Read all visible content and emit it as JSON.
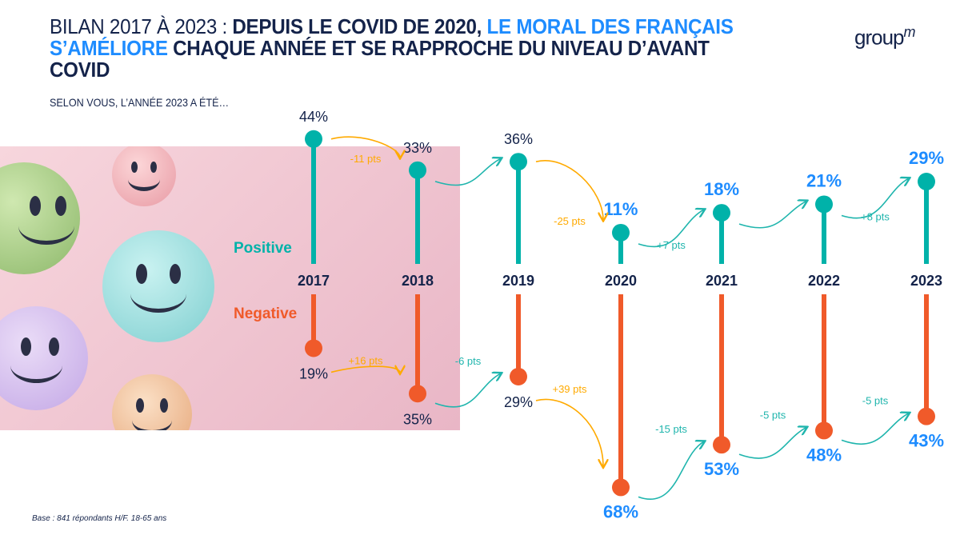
{
  "header": {
    "title_part1": "BILAN 2017 À 2023 : ",
    "title_part2": "DEPUIS LE COVID DE 2020, ",
    "title_part3": "LE MORAL DES FRANÇAIS S’AMÉLIORE",
    "title_part4": " CHAQUE ANNÉE ET SE RAPPROCHE DU NIVEAU D’AVANT COVID",
    "logo": "group",
    "logo_sup": "m",
    "subtitle": "SELON VOUS, L’ANNÉE 2023 A ÉTÉ…"
  },
  "footnote": "Base : 841 répondants H/F. 18-65 ans",
  "colors": {
    "positive": "#00b2a9",
    "negative": "#f05a2a",
    "navy": "#14234a",
    "highlight": "#1e8cff",
    "worse": "#ffaa00",
    "better": "#1fb5ad"
  },
  "chart_data": {
    "type": "lollipop",
    "categories": [
      "2017",
      "2018",
      "2019",
      "2020",
      "2021",
      "2022",
      "2023"
    ],
    "series": [
      {
        "name": "Positive",
        "values": [
          44,
          33,
          36,
          11,
          18,
          21,
          29
        ],
        "labels": [
          "44%",
          "33%",
          "36%",
          "11%",
          "18%",
          "21%",
          "29%"
        ],
        "changes": [
          {
            "label": "-11 pts",
            "trend": "worse"
          },
          {
            "label": "",
            "trend": "better"
          },
          {
            "label": "-25 pts",
            "trend": "worse"
          },
          {
            "label": "+7 pts",
            "trend": "better"
          },
          {
            "label": "",
            "trend": "better"
          },
          {
            "label": "+8 pts",
            "trend": "better"
          }
        ]
      },
      {
        "name": "Negative",
        "values": [
          19,
          35,
          29,
          68,
          53,
          48,
          43
        ],
        "labels": [
          "19%",
          "35%",
          "29%",
          "68%",
          "53%",
          "48%",
          "43%"
        ],
        "changes": [
          {
            "label": "+16 pts",
            "trend": "worse"
          },
          {
            "label": "-6 pts",
            "trend": "better"
          },
          {
            "label": "+39 pts",
            "trend": "worse"
          },
          {
            "label": "-15 pts",
            "trend": "better"
          },
          {
            "label": "-5 pts",
            "trend": "better"
          },
          {
            "label": "-5 pts",
            "trend": "better"
          }
        ]
      }
    ],
    "highlighted_years": [
      "2020",
      "2021",
      "2022",
      "2023"
    ],
    "unit": "%"
  }
}
